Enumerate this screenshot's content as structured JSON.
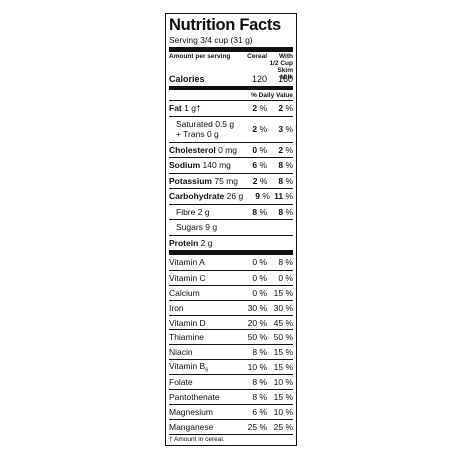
{
  "title": "Nutrition Facts",
  "serving": "Serving 3/4 cup (31 g)",
  "header": {
    "amount_per_serving": "Amount per serving",
    "col1": "Cereal",
    "col2_line1": "With",
    "col2_line2": "1/2 Cup",
    "col2_line3": "Skim Milk"
  },
  "calories": {
    "label": "Calories",
    "cereal": "120",
    "milk": "160"
  },
  "daily_value_label": "% Daily Value",
  "nutrients": [
    {
      "name": "Fat",
      "amount": "1 g†",
      "cereal": "2",
      "milk": "2"
    },
    {
      "name": "Saturated 0.5 g",
      "name2": "+ Trans 0 g",
      "cereal": "2",
      "milk": "3"
    },
    {
      "name": "Cholesterol",
      "amount": "0 mg",
      "cereal": "0",
      "milk": "2"
    },
    {
      "name": "Sodium",
      "amount": "140 mg",
      "cereal": "6",
      "milk": "8"
    },
    {
      "name": "Potassium",
      "amount": "75 mg",
      "cereal": "2",
      "milk": "8"
    },
    {
      "name": "Carbohydrate",
      "amount": "26 g",
      "cereal": "9",
      "milk": "11"
    },
    {
      "name": "Fibre 2 g",
      "cereal": "8",
      "milk": "8"
    },
    {
      "name": "Sugars 9 g"
    },
    {
      "name": "Protein",
      "amount": "2 g"
    }
  ],
  "percent_sign": "%",
  "vitamins": [
    {
      "name": "Vitamin A",
      "cereal": "0 %",
      "milk": "8 %"
    },
    {
      "name": "Vitamin C",
      "cereal": "0 %",
      "milk": "0 %"
    },
    {
      "name": "Calcium",
      "cereal": "0 %",
      "milk": "15 %"
    },
    {
      "name": "Iron",
      "cereal": "30 %",
      "milk": "30 %"
    },
    {
      "name": "Vitamin D",
      "cereal": "20 %",
      "milk": "45 %"
    },
    {
      "name": "Thiamine",
      "cereal": "50 %",
      "milk": "50 %"
    },
    {
      "name": "Niacin",
      "cereal": "8 %",
      "milk": "15 %"
    },
    {
      "name": "Vitamin B",
      "sub": "6",
      "cereal": "10 %",
      "milk": "15 %"
    },
    {
      "name": "Folate",
      "cereal": "8 %",
      "milk": "10 %"
    },
    {
      "name": "Pantothenate",
      "cereal": "8 %",
      "milk": "15 %"
    },
    {
      "name": "Magnesium",
      "cereal": "6 %",
      "milk": "10 %"
    },
    {
      "name": "Manganese",
      "cereal": "25 %",
      "milk": "25 %"
    }
  ],
  "footnote": "† Amount in cereal."
}
